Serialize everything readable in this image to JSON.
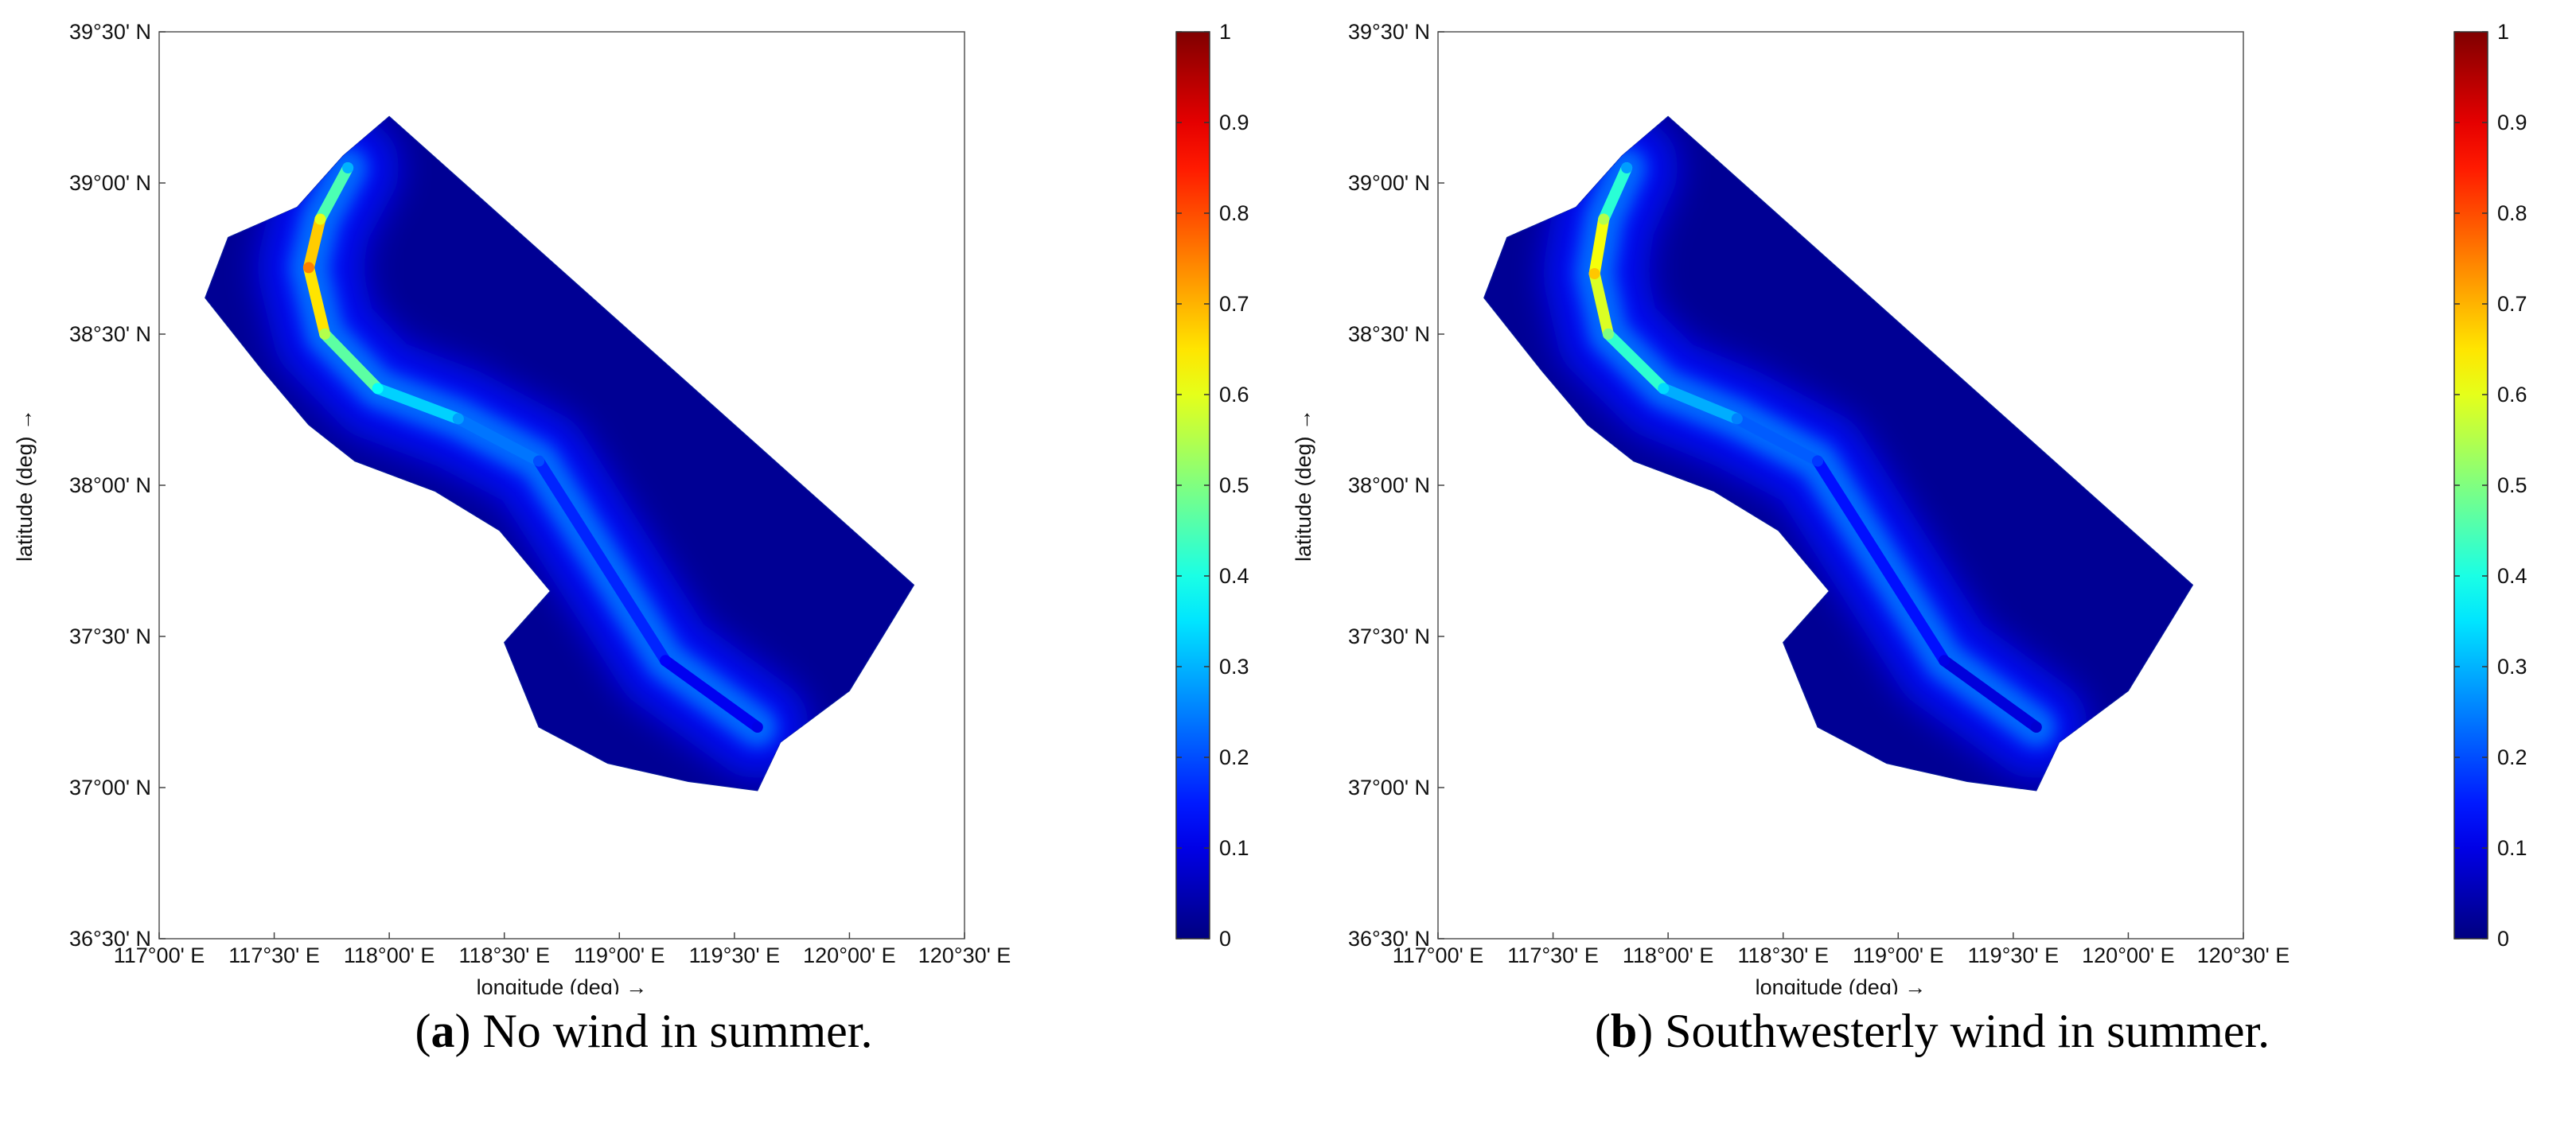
{
  "figure": {
    "panels": [
      {
        "letter": "a",
        "caption_text": ") No wind in summer."
      },
      {
        "letter": "b",
        "caption_text": ") Southwesterly wind in summer."
      }
    ]
  },
  "chart_data": [
    {
      "type": "heatmap",
      "title": "",
      "xlabel": "longitude (deg) →",
      "ylabel": "latitude (deg) →",
      "x_ticks": [
        "117°00' E",
        "117°30' E",
        "118°00' E",
        "118°30' E",
        "119°00' E",
        "119°30' E",
        "120°00' E",
        "120°30' E"
      ],
      "y_ticks": [
        "39°30' N",
        "39°00' N",
        "38°30' N",
        "38°00' N",
        "37°30' N",
        "37°00' N",
        "36°30' N"
      ],
      "xlim": [
        117.0,
        120.5
      ],
      "ylim": [
        36.5,
        39.5
      ],
      "colorbar": {
        "min": 0,
        "max": 1,
        "ticks": [
          "1",
          "0.9",
          "0.8",
          "0.7",
          "0.6",
          "0.5",
          "0.4",
          "0.3",
          "0.2",
          "0.1",
          "0"
        ],
        "colormap": "jet"
      },
      "max_concentration": 0.75,
      "domain_boundary": [
        [
          118.0,
          39.22
        ],
        [
          120.28,
          37.67
        ],
        [
          120.0,
          37.32
        ],
        [
          119.7,
          37.15
        ],
        [
          119.6,
          36.99
        ],
        [
          119.3,
          37.02
        ],
        [
          118.95,
          37.08
        ],
        [
          118.65,
          37.2
        ],
        [
          118.5,
          37.48
        ],
        [
          118.7,
          37.65
        ],
        [
          118.48,
          37.85
        ],
        [
          118.2,
          37.98
        ],
        [
          117.85,
          38.08
        ],
        [
          117.65,
          38.2
        ],
        [
          117.45,
          38.38
        ],
        [
          117.2,
          38.62
        ],
        [
          117.3,
          38.82
        ],
        [
          117.6,
          38.92
        ],
        [
          117.8,
          39.09
        ]
      ],
      "series": [
        {
          "values": [
            [
              117.82,
              39.05,
              0.3
            ],
            [
              117.7,
              38.88,
              0.6
            ],
            [
              117.65,
              38.72,
              0.75
            ],
            [
              117.72,
              38.5,
              0.55
            ],
            [
              117.95,
              38.32,
              0.38
            ],
            [
              118.3,
              38.22,
              0.28
            ],
            [
              118.65,
              38.08,
              0.2
            ],
            [
              119.2,
              37.42,
              0.12
            ],
            [
              119.6,
              37.2,
              0.1
            ]
          ]
        }
      ]
    },
    {
      "type": "heatmap",
      "title": "",
      "xlabel": "longitude (deg) →",
      "ylabel": "latitude (deg) →",
      "x_ticks": [
        "117°00' E",
        "117°30' E",
        "118°00' E",
        "118°30' E",
        "119°00' E",
        "119°30' E",
        "120°00' E",
        "120°30' E"
      ],
      "y_ticks": [
        "39°30' N",
        "39°00' N",
        "38°30' N",
        "38°00' N",
        "37°30' N",
        "37°00' N",
        "36°30' N"
      ],
      "xlim": [
        117.0,
        120.5
      ],
      "ylim": [
        36.5,
        39.5
      ],
      "colorbar": {
        "min": 0,
        "max": 1,
        "ticks": [
          "1",
          "0.9",
          "0.8",
          "0.7",
          "0.6",
          "0.5",
          "0.4",
          "0.3",
          "0.2",
          "0.1",
          "0"
        ],
        "colormap": "jet"
      },
      "max_concentration": 0.68,
      "domain_boundary": [
        [
          118.0,
          39.22
        ],
        [
          120.28,
          37.67
        ],
        [
          120.0,
          37.32
        ],
        [
          119.7,
          37.15
        ],
        [
          119.6,
          36.99
        ],
        [
          119.3,
          37.02
        ],
        [
          118.95,
          37.08
        ],
        [
          118.65,
          37.2
        ],
        [
          118.5,
          37.48
        ],
        [
          118.7,
          37.65
        ],
        [
          118.48,
          37.85
        ],
        [
          118.2,
          37.98
        ],
        [
          117.85,
          38.08
        ],
        [
          117.65,
          38.2
        ],
        [
          117.45,
          38.38
        ],
        [
          117.2,
          38.62
        ],
        [
          117.3,
          38.82
        ],
        [
          117.6,
          38.92
        ],
        [
          117.8,
          39.09
        ]
      ],
      "series": [
        {
          "values": [
            [
              117.82,
              39.05,
              0.28
            ],
            [
              117.72,
              38.88,
              0.55
            ],
            [
              117.68,
              38.7,
              0.68
            ],
            [
              117.74,
              38.5,
              0.5
            ],
            [
              117.98,
              38.32,
              0.34
            ],
            [
              118.3,
              38.22,
              0.25
            ],
            [
              118.65,
              38.08,
              0.18
            ],
            [
              119.2,
              37.42,
              0.1
            ],
            [
              119.6,
              37.2,
              0.08
            ]
          ]
        }
      ]
    }
  ]
}
